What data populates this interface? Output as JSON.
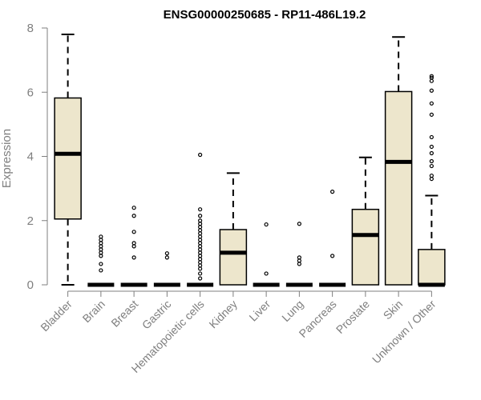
{
  "chart_data": {
    "type": "box",
    "title": "ENSG00000250685 - RP11-486L19.2",
    "xlabel": "",
    "ylabel": "Expression",
    "ylim": [
      0,
      8
    ],
    "yticks": [
      0,
      2,
      4,
      6,
      8
    ],
    "grid": false,
    "legend": "none",
    "box_fill": "#ede6cc",
    "stroke": "#000000",
    "categories": [
      "Bladder",
      "Brain",
      "Breast",
      "Gastric",
      "Hematopoietic cells",
      "Kidney",
      "Liver",
      "Lung",
      "Pancreas",
      "Prostate",
      "Skin",
      "Unknown / Other"
    ],
    "series": [
      {
        "name": "Bladder",
        "min": 0,
        "q1": 2.05,
        "median": 4.08,
        "q3": 5.82,
        "max": 7.8,
        "outliers": []
      },
      {
        "name": "Brain",
        "min": 0,
        "q1": 0,
        "median": 0,
        "q3": 0,
        "max": 0,
        "outliers": [
          0.45,
          0.65,
          0.9,
          1.0,
          1.1,
          1.2,
          1.3,
          1.4,
          1.5
        ]
      },
      {
        "name": "Breast",
        "min": 0,
        "q1": 0,
        "median": 0,
        "q3": 0,
        "max": 0,
        "outliers": [
          0.85,
          1.2,
          1.3,
          1.65,
          2.15,
          2.4
        ]
      },
      {
        "name": "Gastric",
        "min": 0,
        "q1": 0,
        "median": 0,
        "q3": 0,
        "max": 0,
        "outliers": [
          0.85,
          0.98
        ]
      },
      {
        "name": "Hematopoietic cells",
        "min": 0,
        "q1": 0,
        "median": 0,
        "q3": 0,
        "max": 0,
        "outliers": [
          0.2,
          0.35,
          0.5,
          0.6,
          0.7,
          0.8,
          0.9,
          1.0,
          1.1,
          1.2,
          1.3,
          1.4,
          1.5,
          1.6,
          1.7,
          1.8,
          1.9,
          2.0,
          2.15,
          2.35,
          4.05
        ]
      },
      {
        "name": "Kidney",
        "min": 0,
        "q1": 0,
        "median": 1.0,
        "q3": 1.72,
        "max": 3.48,
        "outliers": []
      },
      {
        "name": "Liver",
        "min": 0,
        "q1": 0,
        "median": 0,
        "q3": 0,
        "max": 0,
        "outliers": [
          0.35,
          1.88
        ]
      },
      {
        "name": "Lung",
        "min": 0,
        "q1": 0,
        "median": 0,
        "q3": 0,
        "max": 0,
        "outliers": [
          0.65,
          0.75,
          0.85,
          1.9
        ]
      },
      {
        "name": "Pancreas",
        "min": 0,
        "q1": 0,
        "median": 0,
        "q3": 0,
        "max": 0,
        "outliers": [
          0.9,
          2.9
        ]
      },
      {
        "name": "Prostate",
        "min": 0,
        "q1": 0,
        "median": 1.55,
        "q3": 2.35,
        "max": 3.97,
        "outliers": []
      },
      {
        "name": "Skin",
        "min": 0,
        "q1": 0,
        "median": 3.83,
        "q3": 6.02,
        "max": 7.72,
        "outliers": []
      },
      {
        "name": "Unknown / Other",
        "min": 0,
        "q1": 0,
        "median": 0,
        "q3": 1.1,
        "max": 2.78,
        "outliers": [
          3.3,
          3.4,
          3.7,
          3.85,
          4.1,
          4.3,
          4.6,
          5.3,
          5.65,
          6.05,
          6.35,
          6.45,
          6.5
        ]
      }
    ]
  }
}
